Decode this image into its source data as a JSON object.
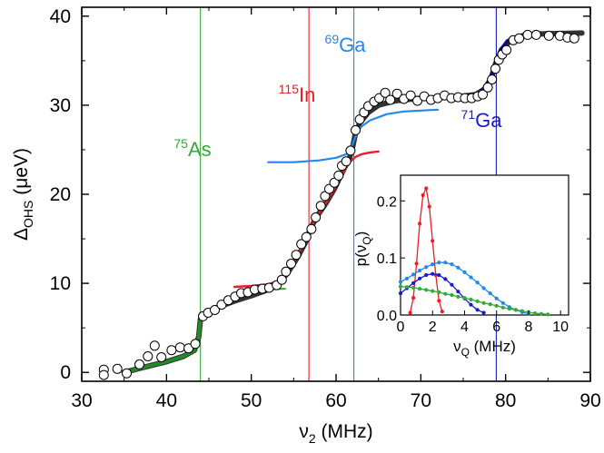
{
  "colors": {
    "as75": "#33aa33",
    "in115": "#ee1c24",
    "ga69": "#2288ee",
    "ga71": "#1a1acc",
    "fit": "#333333",
    "green_fit": "#228b22",
    "navy_fit": "#0b0b8a"
  },
  "chart_data": [
    {
      "type": "scatter",
      "xlabel": {
        "main": "ν",
        "sub": "2",
        "rest": " (MHz)"
      },
      "ylabel": {
        "main": "Δ",
        "sub": "OHS",
        "rest": " (μeV)"
      },
      "xlim": [
        30,
        90
      ],
      "ylim": [
        -1,
        41
      ],
      "xticks": [
        "30",
        "40",
        "50",
        "60",
        "70",
        "80",
        "90"
      ],
      "yticks": [
        "0",
        "10",
        "20",
        "30",
        "40"
      ],
      "annotations": [
        {
          "sup": "75",
          "text": "As",
          "color": "as75",
          "x": 44.0
        },
        {
          "sup": "115",
          "text": "In",
          "color": "in115",
          "x": 56.8
        },
        {
          "sup": "69",
          "text": "Ga",
          "color": "ga69",
          "x": 62.1
        },
        {
          "sup": "71",
          "text": "Ga",
          "color": "ga71",
          "x": 78.9
        }
      ],
      "markers": [
        {
          "x": 44.0,
          "color": "as75"
        },
        {
          "x": 56.8,
          "color": "in115"
        },
        {
          "x": 62.1,
          "color": "ga69"
        },
        {
          "x": 78.9,
          "color": "ga71"
        }
      ],
      "series": [
        {
          "role": "measured",
          "style": "open-circle",
          "points": [
            [
              32.6,
              0.3
            ],
            [
              32.6,
              -0.3
            ],
            [
              34.2,
              0.4
            ],
            [
              35.3,
              -0.1
            ],
            [
              36.8,
              0.9
            ],
            [
              37.8,
              1.8
            ],
            [
              38.6,
              3.0
            ],
            [
              39.4,
              1.7
            ],
            [
              40.6,
              2.5
            ],
            [
              41.6,
              2.8
            ],
            [
              42.6,
              2.7
            ],
            [
              43.4,
              3.2
            ],
            [
              44.3,
              6.3
            ],
            [
              44.9,
              6.7
            ],
            [
              45.7,
              7.0
            ],
            [
              46.5,
              7.6
            ],
            [
              47.3,
              8.1
            ],
            [
              48.1,
              8.5
            ],
            [
              48.8,
              8.9
            ],
            [
              49.6,
              9.0
            ],
            [
              50.4,
              9.3
            ],
            [
              51.3,
              9.4
            ],
            [
              52.1,
              9.5
            ],
            [
              53.0,
              9.8
            ],
            [
              53.6,
              10.4
            ],
            [
              54.1,
              11.3
            ],
            [
              54.7,
              12.2
            ],
            [
              55.3,
              13.2
            ],
            [
              55.9,
              14.4
            ],
            [
              56.5,
              15.2
            ],
            [
              57.1,
              16.1
            ],
            [
              57.6,
              17.4
            ],
            [
              58.2,
              18.7
            ],
            [
              58.7,
              19.8
            ],
            [
              59.2,
              20.6
            ],
            [
              59.8,
              21.3
            ],
            [
              60.3,
              22.1
            ],
            [
              60.7,
              23.2
            ],
            [
              61.2,
              23.7
            ],
            [
              61.7,
              24.9
            ],
            [
              62.3,
              27.2
            ],
            [
              62.8,
              28.4
            ],
            [
              63.3,
              29.2
            ],
            [
              63.8,
              29.9
            ],
            [
              64.5,
              30.4
            ],
            [
              65.1,
              30.8
            ],
            [
              65.8,
              31.4
            ],
            [
              66.4,
              30.6
            ],
            [
              67.2,
              31.3
            ],
            [
              68.0,
              30.7
            ],
            [
              68.8,
              31.1
            ],
            [
              69.6,
              30.5
            ],
            [
              70.4,
              31.0
            ],
            [
              71.2,
              30.6
            ],
            [
              72.0,
              30.8
            ],
            [
              72.8,
              31.1
            ],
            [
              73.6,
              30.8
            ],
            [
              74.4,
              30.9
            ],
            [
              75.2,
              30.8
            ],
            [
              76.0,
              30.8
            ],
            [
              76.7,
              31.0
            ],
            [
              77.3,
              31.2
            ],
            [
              77.9,
              32.0
            ],
            [
              78.4,
              32.9
            ],
            [
              78.8,
              34.1
            ],
            [
              79.2,
              35.1
            ],
            [
              79.6,
              35.7
            ],
            [
              80.1,
              36.2
            ],
            [
              80.9,
              37.3
            ],
            [
              81.6,
              37.5
            ],
            [
              82.6,
              37.9
            ],
            [
              83.6,
              37.9
            ],
            [
              85.1,
              37.8
            ],
            [
              86.4,
              37.8
            ],
            [
              87.3,
              37.6
            ],
            [
              88.1,
              37.5
            ]
          ]
        },
        {
          "role": "fit-total",
          "color": "fit",
          "points": [
            [
              35.0,
              0.0
            ],
            [
              37.0,
              0.5
            ],
            [
              40.0,
              1.2
            ],
            [
              42.0,
              1.8
            ],
            [
              43.3,
              2.5
            ],
            [
              43.8,
              4.0
            ],
            [
              44.0,
              6.0
            ],
            [
              44.5,
              6.6
            ],
            [
              46.0,
              7.3
            ],
            [
              48.0,
              8.0
            ],
            [
              50.0,
              8.6
            ],
            [
              52.0,
              9.3
            ],
            [
              53.5,
              10.2
            ],
            [
              54.5,
              11.5
            ],
            [
              55.5,
              13.0
            ],
            [
              56.5,
              14.8
            ],
            [
              57.0,
              16.2
            ],
            [
              57.8,
              17.6
            ],
            [
              58.8,
              19.0
            ],
            [
              59.8,
              20.6
            ],
            [
              60.8,
              22.6
            ],
            [
              61.6,
              24.1
            ],
            [
              62.0,
              25.5
            ],
            [
              62.3,
              26.9
            ],
            [
              62.8,
              28.0
            ],
            [
              63.8,
              29.2
            ],
            [
              65.0,
              30.0
            ],
            [
              67.0,
              30.5
            ],
            [
              70.0,
              30.8
            ],
            [
              74.0,
              30.9
            ],
            [
              76.5,
              31.2
            ],
            [
              77.5,
              31.8
            ],
            [
              78.3,
              33.0
            ],
            [
              78.8,
              34.6
            ],
            [
              79.5,
              36.2
            ],
            [
              80.5,
              37.2
            ],
            [
              82.0,
              37.8
            ],
            [
              84.0,
              38.0
            ],
            [
              89.0,
              38.1
            ]
          ]
        },
        {
          "role": "as75-fit",
          "color": "green_fit",
          "points": [
            [
              35.0,
              0.0
            ],
            [
              37.0,
              0.5
            ],
            [
              40.0,
              1.2
            ],
            [
              42.0,
              1.8
            ],
            [
              43.3,
              2.5
            ],
            [
              43.8,
              4.0
            ],
            [
              44.0,
              6.0
            ],
            [
              44.5,
              6.6
            ],
            [
              45.0,
              6.9
            ]
          ]
        },
        {
          "role": "as75-tail",
          "color": "as75",
          "points": [
            [
              44.3,
              6.4
            ],
            [
              45.0,
              6.9
            ],
            [
              46.5,
              7.6
            ],
            [
              48.0,
              8.3
            ],
            [
              50.0,
              8.9
            ],
            [
              52.0,
              9.3
            ],
            [
              54.0,
              9.4
            ]
          ]
        },
        {
          "role": "in115-fit",
          "color": "in115",
          "points": [
            [
              48.0,
              9.6
            ],
            [
              50.0,
              9.7
            ],
            [
              52.0,
              9.9
            ],
            [
              53.5,
              10.4
            ],
            [
              54.5,
              11.6
            ],
            [
              55.5,
              13.2
            ],
            [
              56.5,
              15.0
            ],
            [
              57.0,
              16.2
            ],
            [
              57.8,
              17.6
            ],
            [
              58.8,
              19.0
            ],
            [
              59.8,
              20.6
            ],
            [
              60.8,
              22.4
            ],
            [
              61.6,
              23.6
            ],
            [
              62.3,
              24.2
            ],
            [
              63.0,
              24.5
            ],
            [
              64.0,
              24.7
            ],
            [
              65.0,
              24.8
            ]
          ]
        },
        {
          "role": "ga69-fit",
          "color": "ga69",
          "points": [
            [
              52.0,
              23.6
            ],
            [
              55.0,
              23.6
            ],
            [
              58.0,
              23.8
            ],
            [
              60.0,
              24.1
            ],
            [
              61.2,
              24.5
            ],
            [
              61.8,
              25.2
            ],
            [
              62.1,
              26.0
            ],
            [
              62.5,
              26.9
            ],
            [
              63.0,
              27.6
            ],
            [
              64.0,
              28.3
            ],
            [
              66.0,
              29.0
            ],
            [
              68.0,
              29.3
            ],
            [
              70.0,
              29.4
            ],
            [
              72.0,
              29.5
            ]
          ]
        },
        {
          "role": "ga71-fit",
          "color": "navy_fit",
          "points": [
            [
              72.0,
              30.8
            ],
            [
              74.0,
              30.9
            ],
            [
              76.0,
              31.0
            ],
            [
              77.0,
              31.4
            ],
            [
              77.8,
              32.3
            ],
            [
              78.4,
              33.6
            ],
            [
              78.9,
              35.0
            ],
            [
              79.5,
              36.3
            ],
            [
              80.2,
              37.2
            ],
            [
              81.0,
              37.6
            ],
            [
              82.0,
              37.8
            ],
            [
              83.0,
              37.9
            ]
          ]
        }
      ]
    },
    {
      "type": "line",
      "inset": true,
      "xlabel": {
        "main": "ν",
        "sub": "Q",
        "rest": " (MHz)"
      },
      "ylabel": {
        "main": "p(ν",
        "sub": "Q",
        "rest": ")"
      },
      "xlim": [
        0,
        10.5
      ],
      "ylim": [
        0,
        0.245
      ],
      "xticks": [
        "0",
        "2",
        "4",
        "6",
        "8",
        "10"
      ],
      "yticks": [
        "0.0",
        "0.1",
        "0.2"
      ],
      "series": [
        {
          "color": "in115",
          "x": [
            0.6,
            0.8,
            1.0,
            1.2,
            1.4,
            1.6,
            1.8,
            2.0,
            2.2,
            2.4,
            2.6
          ],
          "values": [
            0.004,
            0.03,
            0.09,
            0.16,
            0.21,
            0.222,
            0.19,
            0.13,
            0.07,
            0.025,
            0.006
          ]
        },
        {
          "color": "ga69",
          "x": [
            0.0,
            0.4,
            0.8,
            1.2,
            1.6,
            2.0,
            2.4,
            2.8,
            3.2,
            3.6,
            4.0,
            4.4,
            4.8,
            5.2,
            5.6,
            6.0,
            6.4,
            6.8,
            7.2,
            7.6,
            8.0
          ],
          "values": [
            0.058,
            0.064,
            0.071,
            0.078,
            0.084,
            0.089,
            0.092,
            0.092,
            0.089,
            0.083,
            0.075,
            0.066,
            0.057,
            0.047,
            0.038,
            0.029,
            0.021,
            0.014,
            0.009,
            0.005,
            0.002
          ]
        },
        {
          "color": "ga71",
          "x": [
            0.0,
            0.4,
            0.8,
            1.2,
            1.6,
            2.0,
            2.4,
            2.8,
            3.2,
            3.6,
            4.0,
            4.4,
            4.8,
            5.2
          ],
          "values": [
            0.038,
            0.047,
            0.056,
            0.064,
            0.07,
            0.072,
            0.07,
            0.063,
            0.053,
            0.041,
            0.029,
            0.018,
            0.009,
            0.004
          ]
        },
        {
          "color": "as75",
          "x": [
            0.0,
            0.4,
            0.8,
            1.2,
            1.6,
            2.0,
            2.4,
            2.8,
            3.2,
            3.6,
            4.0,
            4.4,
            4.8,
            5.2,
            5.6,
            6.0,
            6.4,
            6.8,
            7.2,
            7.6,
            8.0,
            8.4,
            8.8,
            9.2
          ],
          "values": [
            0.05,
            0.049,
            0.048,
            0.046,
            0.044,
            0.042,
            0.04,
            0.037,
            0.035,
            0.032,
            0.03,
            0.027,
            0.024,
            0.021,
            0.019,
            0.016,
            0.013,
            0.011,
            0.009,
            0.007,
            0.005,
            0.003,
            0.002,
            0.001
          ]
        }
      ]
    }
  ]
}
